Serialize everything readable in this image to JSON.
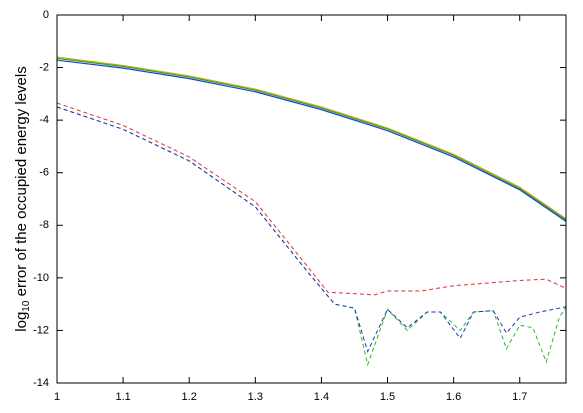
{
  "chart_data": {
    "type": "line",
    "y_label": {
      "base": "log",
      "sub": "10",
      "text": " error of the occupied energy levels"
    },
    "xlim": [
      1,
      1.77
    ],
    "ylim": [
      -14,
      0
    ],
    "xticks": [
      1,
      1.1,
      1.2,
      1.3,
      1.4,
      1.5,
      1.6,
      1.7
    ],
    "yticks": [
      0,
      -2,
      -4,
      -6,
      -8,
      -10,
      -12,
      -14
    ],
    "series": [
      {
        "color": "#e8a020",
        "dash": false,
        "x": [
          1,
          1.1,
          1.2,
          1.3,
          1.4,
          1.5,
          1.6,
          1.7,
          1.77
        ],
        "values": [
          -1.6,
          -1.92,
          -2.32,
          -2.82,
          -3.5,
          -4.3,
          -5.3,
          -6.55,
          -7.75
        ]
      },
      {
        "color": "#20b020",
        "dash": false,
        "x": [
          1,
          1.1,
          1.2,
          1.3,
          1.4,
          1.5,
          1.6,
          1.7,
          1.77
        ],
        "values": [
          -1.65,
          -1.96,
          -2.36,
          -2.86,
          -3.54,
          -4.34,
          -5.34,
          -6.6,
          -7.8
        ]
      },
      {
        "color": "#2040d0",
        "dash": false,
        "x": [
          1,
          1.1,
          1.2,
          1.3,
          1.4,
          1.5,
          1.6,
          1.7,
          1.77
        ],
        "values": [
          -1.72,
          -2.02,
          -2.42,
          -2.92,
          -3.6,
          -4.4,
          -5.4,
          -6.65,
          -7.85
        ]
      },
      {
        "color": "#e03030",
        "dash": true,
        "x": [
          1,
          1.1,
          1.2,
          1.3,
          1.38,
          1.41,
          1.45,
          1.48,
          1.5,
          1.55,
          1.6,
          1.65,
          1.7,
          1.74,
          1.77
        ],
        "values": [
          -3.35,
          -4.2,
          -5.4,
          -7.1,
          -9.6,
          -10.55,
          -10.6,
          -10.65,
          -10.5,
          -10.5,
          -10.3,
          -10.2,
          -10.1,
          -10.05,
          -10.4
        ]
      },
      {
        "color": "#20c020",
        "dash": true,
        "x": [
          1,
          1.1,
          1.2,
          1.3,
          1.38,
          1.42,
          1.45,
          1.47,
          1.5,
          1.53,
          1.56,
          1.58,
          1.61,
          1.63,
          1.66,
          1.68,
          1.7,
          1.72,
          1.74,
          1.76,
          1.77
        ],
        "values": [
          -3.5,
          -4.35,
          -5.55,
          -7.3,
          -9.8,
          -11.0,
          -11.15,
          -13.3,
          -11.2,
          -12.0,
          -11.3,
          -11.3,
          -12.0,
          -11.3,
          -11.25,
          -12.7,
          -11.8,
          -11.9,
          -13.2,
          -11.5,
          -11.1
        ]
      },
      {
        "color": "#2030c0",
        "dash": true,
        "x": [
          1,
          1.1,
          1.2,
          1.3,
          1.38,
          1.42,
          1.45,
          1.47,
          1.5,
          1.53,
          1.56,
          1.58,
          1.61,
          1.63,
          1.66,
          1.68,
          1.7,
          1.73,
          1.77
        ],
        "values": [
          -3.5,
          -4.35,
          -5.55,
          -7.3,
          -9.8,
          -11.0,
          -11.15,
          -12.8,
          -11.2,
          -11.9,
          -11.3,
          -11.3,
          -12.3,
          -11.3,
          -11.25,
          -12.1,
          -11.5,
          -11.3,
          -11.1
        ]
      }
    ]
  }
}
